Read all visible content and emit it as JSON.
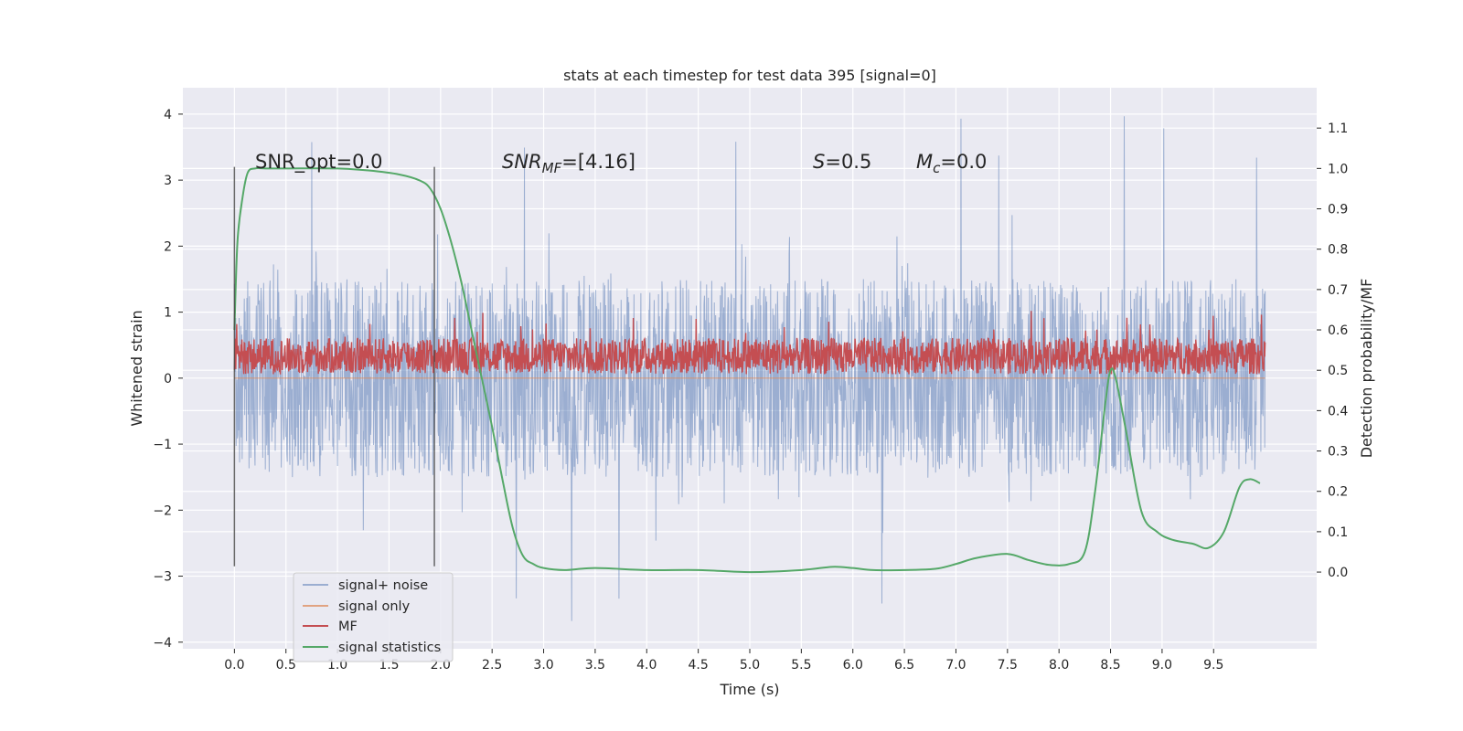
{
  "chart_data": {
    "type": "line",
    "title": "stats at each timestep for test data 395 [signal=0]",
    "xlabel": "Time (s)",
    "ylabel": "Whitened strain",
    "y2label": "Detection probability/MF",
    "xlim": [
      -0.5,
      10.5
    ],
    "ylim": [
      -4.1,
      4.4
    ],
    "y2lim": [
      -0.19,
      1.2
    ],
    "x_ticks": [
      "0.0",
      "0.5",
      "1.0",
      "1.5",
      "2.0",
      "2.5",
      "3.0",
      "3.5",
      "4.0",
      "4.5",
      "5.0",
      "5.5",
      "6.0",
      "6.5",
      "7.0",
      "7.5",
      "8.0",
      "8.5",
      "9.0",
      "9.5"
    ],
    "y_ticks": [
      "−4",
      "−3",
      "−2",
      "−1",
      "0",
      "1",
      "2",
      "3",
      "4"
    ],
    "y2_ticks": [
      "0.0",
      "0.1",
      "0.2",
      "0.3",
      "0.4",
      "0.5",
      "0.6",
      "0.7",
      "0.8",
      "0.9",
      "1.0",
      "1.1"
    ],
    "grid": true,
    "legend_position": "lower-left",
    "annotations": {
      "snr_opt": "SNR_opt=0.0",
      "snr_mf_base": "SNR",
      "snr_mf_sub": "MF",
      "snr_mf_value": "=[4.16]",
      "s_label": "S",
      "s_value": "=0.5",
      "mc_label": "M",
      "mc_sub": "c",
      "mc_value": "=0.0"
    },
    "window_markers_x": [
      0.0,
      1.94
    ],
    "window_markers_yrange": [
      -2.85,
      3.2
    ],
    "series": [
      {
        "name": "signal+ noise",
        "color": "#4c72b0",
        "axis": "left",
        "style": "dense noise",
        "x_range": [
          0.0,
          10.0
        ],
        "typical_range": [
          -1.5,
          1.5
        ],
        "extremes": [
          -3.7,
          4.05
        ]
      },
      {
        "name": "signal only",
        "color": "#dd8452",
        "axis": "left",
        "x": [
          0.0,
          10.0
        ],
        "values": [
          0.0,
          0.0
        ]
      },
      {
        "name": "MF",
        "color": "#c44e52",
        "axis": "right",
        "style": "dense noise",
        "x_range": [
          0.0,
          10.0
        ],
        "typical_range": [
          0.49,
          0.58
        ],
        "extremes": [
          0.47,
          0.65
        ]
      },
      {
        "name": "signal statistics",
        "color": "#55a868",
        "axis": "right",
        "x": [
          0.0,
          0.03,
          0.08,
          0.13,
          0.2,
          0.3,
          0.5,
          1.0,
          1.3,
          1.6,
          1.8,
          1.9,
          2.0,
          2.1,
          2.2,
          2.3,
          2.4,
          2.5,
          2.6,
          2.7,
          2.8,
          2.9,
          3.0,
          3.2,
          3.5,
          4.0,
          4.5,
          5.0,
          5.5,
          5.8,
          6.0,
          6.2,
          6.5,
          6.8,
          7.0,
          7.2,
          7.5,
          7.7,
          7.9,
          8.1,
          8.25,
          8.35,
          8.45,
          8.5,
          8.55,
          8.65,
          8.8,
          8.95,
          9.1,
          9.3,
          9.45,
          9.6,
          9.75,
          9.85,
          9.95
        ],
        "values": [
          0.6,
          0.82,
          0.93,
          0.99,
          1.0,
          1.0,
          1.0,
          1.0,
          0.995,
          0.985,
          0.97,
          0.95,
          0.9,
          0.82,
          0.72,
          0.6,
          0.48,
          0.36,
          0.23,
          0.11,
          0.04,
          0.02,
          0.01,
          0.005,
          0.01,
          0.005,
          0.005,
          0.0,
          0.005,
          0.013,
          0.01,
          0.005,
          0.005,
          0.008,
          0.02,
          0.035,
          0.045,
          0.03,
          0.018,
          0.02,
          0.05,
          0.2,
          0.42,
          0.5,
          0.48,
          0.35,
          0.15,
          0.1,
          0.08,
          0.07,
          0.06,
          0.1,
          0.21,
          0.23,
          0.22
        ]
      }
    ]
  }
}
